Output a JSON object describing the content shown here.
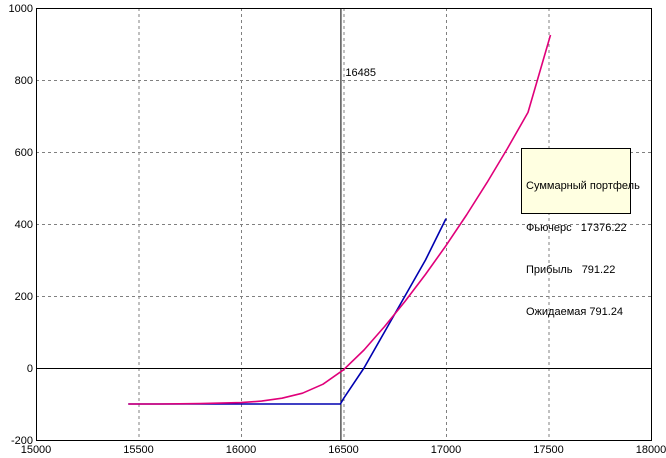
{
  "chart_data": {
    "type": "line",
    "title": "",
    "xlabel": "",
    "ylabel": "",
    "xlim": [
      15000,
      18000
    ],
    "ylim": [
      -200,
      1000
    ],
    "xticks": [
      15000,
      15500,
      16000,
      16500,
      17000,
      17500,
      18000
    ],
    "yticks": [
      -200,
      0,
      200,
      400,
      600,
      800,
      1000
    ],
    "grid": true,
    "colors": {
      "expiry": "#0000b0",
      "current": "#e0007a"
    },
    "series": [
      {
        "key": "expiry",
        "color": "#0000b0",
        "x": [
          15450,
          16000,
          16485,
          16500,
          16600,
          16700,
          16800,
          16900,
          17000
        ],
        "y": [
          -100,
          -100,
          -100,
          -85,
          0,
          100,
          200,
          300,
          415
        ]
      },
      {
        "key": "current",
        "color": "#e0007a",
        "x": [
          15450,
          15600,
          15800,
          16000,
          16100,
          16200,
          16300,
          16400,
          16500,
          16600,
          16700,
          16800,
          16900,
          17000,
          17100,
          17200,
          17300,
          17400,
          17510
        ],
        "y": [
          -100,
          -100,
          -99,
          -96,
          -92,
          -84,
          -70,
          -45,
          -5,
          50,
          115,
          185,
          260,
          340,
          425,
          515,
          610,
          710,
          925
        ]
      }
    ],
    "marker": {
      "x": 16485,
      "label": "16485"
    },
    "tooltip": {
      "title": "Суммарный портфель",
      "lines": [
        "Фьючерс   17376.22",
        "Прибыль   791.22",
        "Ожидаемая 791.24"
      ]
    }
  }
}
